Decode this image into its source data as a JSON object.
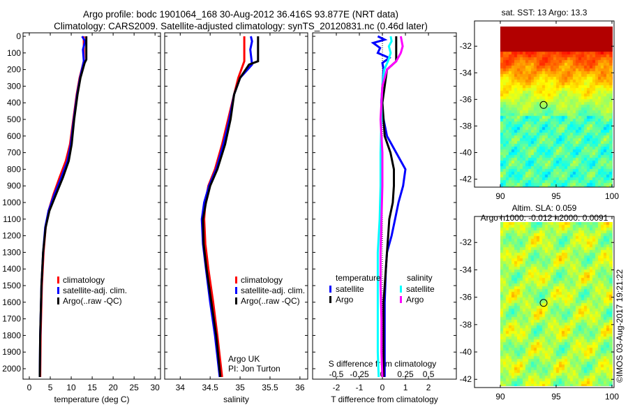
{
  "title": {
    "line1": "Argo profile: bodc 1901064_168 30-Aug-2012 36.416S 93.877E (NRT data)",
    "line2": "Climatology: CARS2009. Satellite-adjusted climatology: synTS_20120831.nc (0.46d later)"
  },
  "colors": {
    "climatology": "#ff0000",
    "satellite": "#0000ff",
    "argo": "#000000",
    "sal_satellite": "#00ffff",
    "sal_argo": "#ff00ff"
  },
  "chart_data": [
    {
      "type": "line",
      "name": "temperature",
      "xlabel": "temperature (deg C)",
      "xlim": [
        -1.5,
        31.3
      ],
      "ylim": [
        2063,
        -21
      ],
      "xticks": [
        0,
        5,
        10,
        15,
        20,
        25,
        30
      ],
      "yticks": [
        0,
        100,
        200,
        300,
        400,
        500,
        600,
        700,
        800,
        900,
        1000,
        1100,
        1200,
        1300,
        1400,
        1500,
        1600,
        1700,
        1800,
        1900,
        2000
      ],
      "legend": [
        "climatology",
        "satellite-adj. clim.",
        "Argo(..raw -QC)"
      ],
      "series": [
        {
          "name": "climatology",
          "color": "#ff0000",
          "depth": [
            0,
            150,
            250,
            350,
            500,
            650,
            750,
            850,
            950,
            1050,
            1150,
            1300,
            1500,
            1800,
            2050
          ],
          "values": [
            13,
            13,
            12,
            11.3,
            10.5,
            9.7,
            8.7,
            7.2,
            5.8,
            4.6,
            3.9,
            3.4,
            3.0,
            2.7,
            2.6
          ]
        },
        {
          "name": "satellite-adj. clim.",
          "color": "#0000ff",
          "depth": [
            0,
            30,
            80,
            150,
            250,
            350,
            500,
            650,
            750,
            850,
            950,
            1050,
            1150,
            1300,
            1500,
            1800,
            2050
          ],
          "values": [
            12.6,
            13.3,
            12.8,
            13,
            12.1,
            11.4,
            10.6,
            9.9,
            9.1,
            7.6,
            6.0,
            4.6,
            3.8,
            3.3,
            2.9,
            2.6,
            2.5
          ]
        },
        {
          "name": "Argo(..raw -QC)",
          "color": "#000000",
          "depth": [
            0,
            140,
            160,
            250,
            350,
            500,
            650,
            750,
            850,
            950,
            1050,
            1150,
            1300,
            1500,
            1800,
            2050
          ],
          "values": [
            13.6,
            13.6,
            13.2,
            12.2,
            11.5,
            10.7,
            10.1,
            9.4,
            8.0,
            6.4,
            4.8,
            3.9,
            3.3,
            2.9,
            2.6,
            2.5
          ]
        }
      ]
    },
    {
      "type": "line",
      "name": "salinity",
      "xlabel": "salinity",
      "xlim": [
        33.74,
        36.13
      ],
      "ylim": [
        2063,
        -21
      ],
      "xticks": [
        34,
        34.5,
        35,
        35.5,
        36
      ],
      "legend": [
        "climatology",
        "satellite-adj. clim.",
        "Argo(..raw -QC)"
      ],
      "annotation": [
        "Argo UK",
        "PI: Jon Turton"
      ],
      "series": [
        {
          "name": "climatology",
          "color": "#ff0000",
          "depth": [
            0,
            150,
            250,
            350,
            500,
            650,
            800,
            900,
            1000,
            1100,
            1250,
            1400,
            1600,
            1800,
            2050
          ],
          "values": [
            35.07,
            35.07,
            34.97,
            34.9,
            34.8,
            34.7,
            34.58,
            34.47,
            34.42,
            34.4,
            34.42,
            34.47,
            34.55,
            34.62,
            34.7
          ]
        },
        {
          "name": "satellite-adj. clim.",
          "color": "#0000ff",
          "depth": [
            0,
            30,
            80,
            170,
            250,
            350,
            500,
            650,
            800,
            900,
            1000,
            1100,
            1250,
            1400,
            1600,
            1800,
            2050
          ],
          "values": [
            35.18,
            35.2,
            35.17,
            35.2,
            35.0,
            34.9,
            34.82,
            34.72,
            34.6,
            34.48,
            34.4,
            34.36,
            34.38,
            34.43,
            34.5,
            34.58,
            34.66
          ]
        },
        {
          "name": "Argo(..raw -QC)",
          "color": "#000000",
          "depth": [
            0,
            150,
            170,
            250,
            350,
            500,
            650,
            800,
            900,
            1000,
            1100,
            1250,
            1400,
            1600,
            1800,
            2050
          ],
          "values": [
            35.3,
            35.3,
            35.15,
            35.0,
            34.9,
            34.84,
            34.75,
            34.62,
            34.5,
            34.43,
            34.38,
            34.39,
            34.44,
            34.52,
            34.6,
            34.67
          ]
        }
      ]
    },
    {
      "type": "line",
      "name": "difference",
      "xlabel": "T difference from climatology",
      "xlabel2": "S difference from climatology",
      "xlim": [
        -3.03,
        3.21
      ],
      "ylim": [
        2063,
        -21
      ],
      "xticks": [
        -2,
        -1,
        0,
        1,
        2
      ],
      "xticks2": [
        -0.5,
        -0.25,
        0,
        0.25,
        0.5
      ],
      "xticks2_labels": [
        "-0.5",
        "-0.25",
        "0",
        "0.25",
        "0.5"
      ],
      "s_to_t_scale": 4,
      "legend": {
        "temperature_title": "temperature",
        "salinity_title": "salinity",
        "items": [
          "satellite",
          "Argo",
          "satellite",
          "Argo"
        ]
      },
      "series": [
        {
          "name": "temperature satellite",
          "color": "#0000ff",
          "depth": [
            0,
            20,
            40,
            70,
            100,
            130,
            160,
            200,
            300,
            400,
            500,
            600,
            700,
            800,
            900,
            1000,
            1100,
            1200,
            1300,
            1400,
            1600,
            1800,
            2050
          ],
          "values": [
            -0.2,
            0.1,
            -0.4,
            -0.1,
            -0.2,
            0.3,
            0.0,
            0.05,
            0.0,
            -0.05,
            0.05,
            0.2,
            0.6,
            1.0,
            0.9,
            0.7,
            0.55,
            0.4,
            0.2,
            0.15,
            0.1,
            0.1,
            0.1
          ]
        },
        {
          "name": "temperature Argo",
          "color": "#000000",
          "depth": [
            0,
            150,
            200,
            300,
            400,
            500,
            600,
            700,
            800,
            900,
            1000,
            1100,
            1200,
            1300,
            1400,
            1600,
            1800,
            2050
          ],
          "values": [
            0.6,
            0.6,
            0.2,
            0.1,
            0.0,
            0.05,
            0.1,
            0.35,
            0.5,
            0.5,
            0.45,
            0.3,
            0.25,
            0.2,
            0.15,
            0.05,
            0.05,
            0.05
          ]
        },
        {
          "name": "salinity satellite",
          "color": "#00ffff",
          "depth": [
            0,
            30,
            60,
            100,
            150,
            200,
            300,
            400,
            500,
            700,
            900,
            1100,
            1300,
            1500,
            1700,
            1900,
            2050
          ],
          "values": [
            0.09,
            0.1,
            0.07,
            0.09,
            0.06,
            0.02,
            0.0,
            -0.01,
            -0.01,
            -0.02,
            -0.02,
            -0.03,
            -0.05,
            -0.05,
            -0.05,
            -0.05,
            -0.04
          ]
        },
        {
          "name": "salinity Argo",
          "color": "#ff00ff",
          "depth": [
            0,
            60,
            100,
            150,
            200,
            300,
            400,
            500,
            600,
            700,
            900,
            1100,
            1300,
            1500,
            1700,
            1900,
            2050
          ],
          "values": [
            0.2,
            0.22,
            0.2,
            0.15,
            0.05,
            0.0,
            -0.01,
            -0.02,
            -0.01,
            0.0,
            0.0,
            -0.01,
            -0.02,
            -0.02,
            -0.01,
            -0.01,
            0.0
          ]
        }
      ]
    },
    {
      "type": "heatmap",
      "name": "sst-map",
      "title": "sat. SST: 13 Argo: 13.3",
      "xlim": [
        87.7,
        100.2
      ],
      "ylim": [
        -42.6,
        -30.1
      ],
      "xticks": [
        90,
        95,
        100
      ],
      "yticks": [
        -32,
        -34,
        -36,
        -38,
        -40,
        -42
      ],
      "float_position": {
        "lon": 93.877,
        "lat": -36.416
      }
    },
    {
      "type": "heatmap",
      "name": "sla-map",
      "title": "Altim. SLA: 0.059",
      "subtitle": "Argo h1000: -0.012 h2000: 0.0091",
      "xlim": [
        87.7,
        100.2
      ],
      "ylim": [
        -42.6,
        -30.1
      ],
      "xticks": [
        90,
        95,
        100
      ],
      "yticks": [
        -32,
        -34,
        -36,
        -38,
        -40,
        -42
      ],
      "float_position": {
        "lon": 93.877,
        "lat": -36.416
      }
    }
  ],
  "copyright": "©IMOS 03-Aug-2017 19:21:22"
}
